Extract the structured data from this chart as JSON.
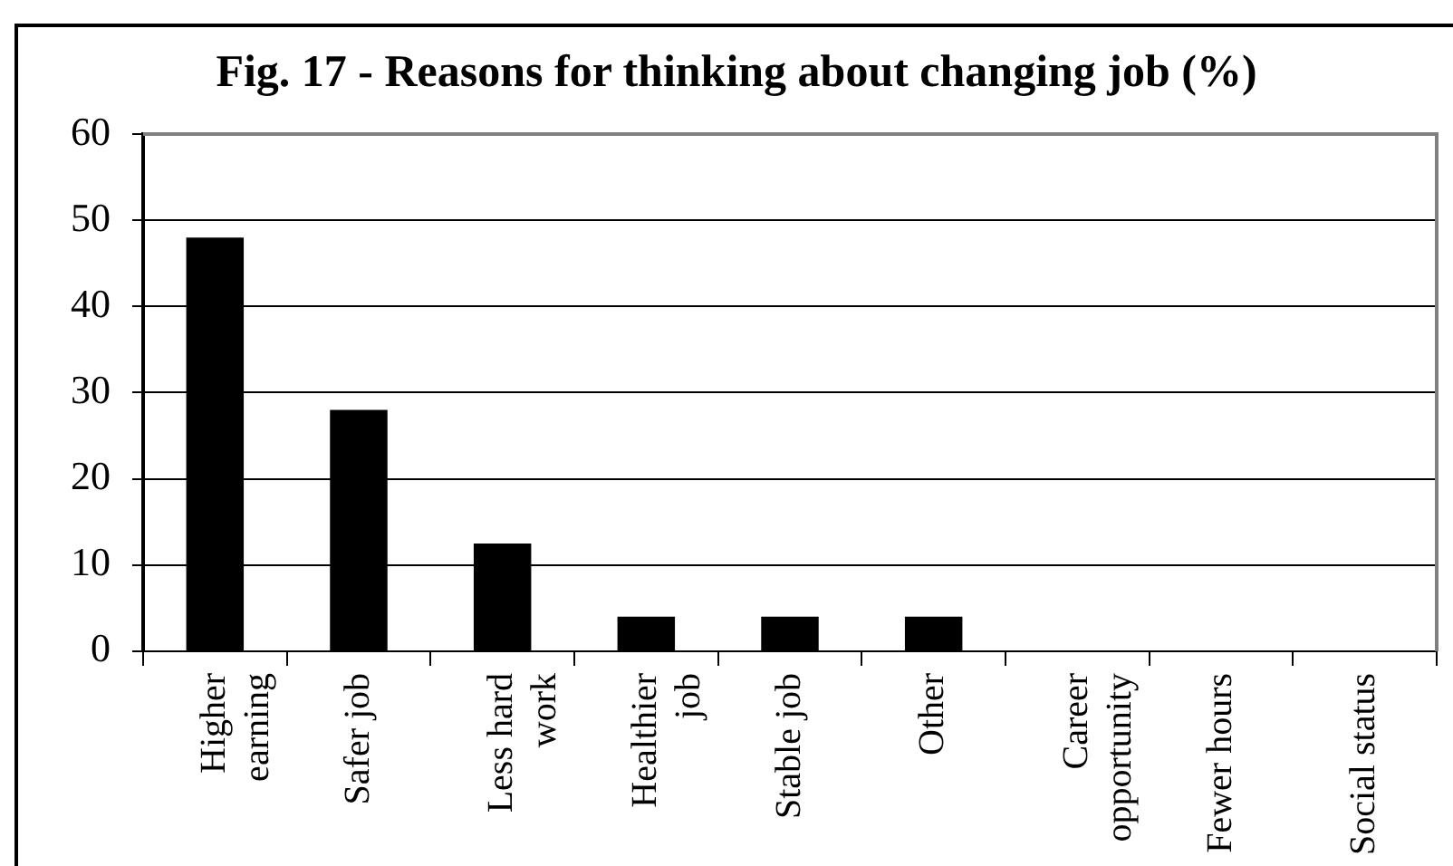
{
  "chart_data": {
    "type": "bar",
    "title": "Fig. 17 - Reasons for thinking about changing job (%)",
    "categories": [
      "Higher earning",
      "Safer job",
      "Less hard work",
      "Healthier job",
      "Stable job",
      "Other",
      "Career opportunity",
      "Fewer hours",
      "Social status"
    ],
    "values": [
      48,
      28,
      12.5,
      4,
      4,
      4,
      0,
      0,
      0
    ],
    "color": "#000000",
    "ylim": [
      0,
      60
    ],
    "yticks": [
      0,
      10,
      20,
      30,
      40,
      50,
      60
    ],
    "grid": "y"
  }
}
